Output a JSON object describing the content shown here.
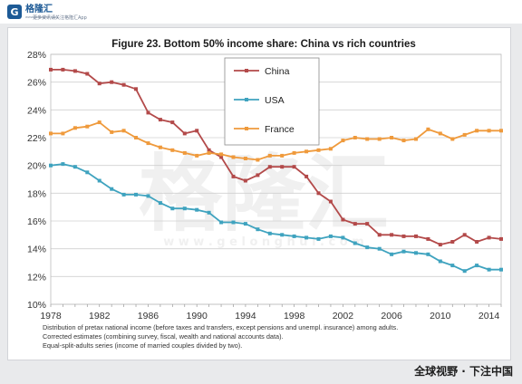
{
  "header": {
    "logo_mark": "G",
    "logo_name": "格隆汇",
    "logo_url": "www.gelonghui.com",
    "slogan": "更多资讯请关注格隆汇App"
  },
  "footer": {
    "text": "全球视野 · 下注中国"
  },
  "watermark": {
    "text_cn": "格隆汇",
    "text_url": "w w w . g e l o n g h u i . c o m"
  },
  "colors": {
    "china": "#b34a4a",
    "usa": "#3fa3bf",
    "france": "#ef9a3c",
    "grid": "#d0d0d0",
    "axis_text": "#333333"
  },
  "notes": [
    "Distribution of pretax national income (before taxes and transfers, except pensions and unempl. insurance) among adults.",
    "Corrected estimates (combining survey, fiscal, wealth and national accounts data).",
    "Equal-split-adults series (income of married couples divided by two)."
  ],
  "chart_data": {
    "type": "line",
    "title": "Figure 23. Bottom 50% income share: China vs rich countries",
    "xlabel": "",
    "ylabel": "",
    "xlim": [
      1978,
      2015
    ],
    "ylim": [
      10,
      28
    ],
    "yticks": [
      10,
      12,
      14,
      16,
      18,
      20,
      22,
      24,
      26,
      28
    ],
    "ytick_labels": [
      "10%",
      "12%",
      "14%",
      "16%",
      "18%",
      "20%",
      "22%",
      "24%",
      "26%",
      "28%"
    ],
    "xticks": [
      1978,
      1982,
      1986,
      1990,
      1994,
      1998,
      2002,
      2006,
      2010,
      2014
    ],
    "xtick_labels": [
      "1978",
      "1982",
      "1986",
      "1990",
      "1994",
      "1998",
      "2002",
      "2006",
      "2010",
      "2014"
    ],
    "grid": true,
    "legend": "top-center",
    "x": [
      1978,
      1979,
      1980,
      1981,
      1982,
      1983,
      1984,
      1985,
      1986,
      1987,
      1988,
      1989,
      1990,
      1991,
      1992,
      1993,
      1994,
      1995,
      1996,
      1997,
      1998,
      1999,
      2000,
      2001,
      2002,
      2003,
      2004,
      2005,
      2006,
      2007,
      2008,
      2009,
      2010,
      2011,
      2012,
      2013,
      2014,
      2015
    ],
    "series": [
      {
        "name": "China",
        "values": [
          26.9,
          26.9,
          26.8,
          26.6,
          25.9,
          26.0,
          25.8,
          25.5,
          23.8,
          23.3,
          23.1,
          22.3,
          22.5,
          21.1,
          20.6,
          19.2,
          18.9,
          19.3,
          19.9,
          19.9,
          19.9,
          19.2,
          18.0,
          17.4,
          16.1,
          15.8,
          15.8,
          15.0,
          15.0,
          14.9,
          14.9,
          14.7,
          14.3,
          14.5,
          15.0,
          14.5,
          14.8,
          14.7
        ]
      },
      {
        "name": "USA",
        "values": [
          20.0,
          20.1,
          19.9,
          19.5,
          18.9,
          18.3,
          17.9,
          17.9,
          17.8,
          17.3,
          16.9,
          16.9,
          16.8,
          16.6,
          15.9,
          15.9,
          15.8,
          15.4,
          15.1,
          15.0,
          14.9,
          14.8,
          14.7,
          14.9,
          14.8,
          14.4,
          14.1,
          14.0,
          13.6,
          13.8,
          13.7,
          13.6,
          13.1,
          12.8,
          12.4,
          12.8,
          12.5,
          12.5
        ]
      },
      {
        "name": "France",
        "values": [
          22.3,
          22.3,
          22.7,
          22.8,
          23.1,
          22.4,
          22.5,
          22.0,
          21.6,
          21.3,
          21.1,
          20.9,
          20.7,
          20.9,
          20.8,
          20.6,
          20.5,
          20.4,
          20.7,
          20.7,
          20.9,
          21.0,
          21.1,
          21.2,
          21.8,
          22.0,
          21.9,
          21.9,
          22.0,
          21.8,
          21.9,
          22.6,
          22.3,
          21.9,
          22.2,
          22.5,
          22.5,
          22.5
        ]
      }
    ]
  }
}
